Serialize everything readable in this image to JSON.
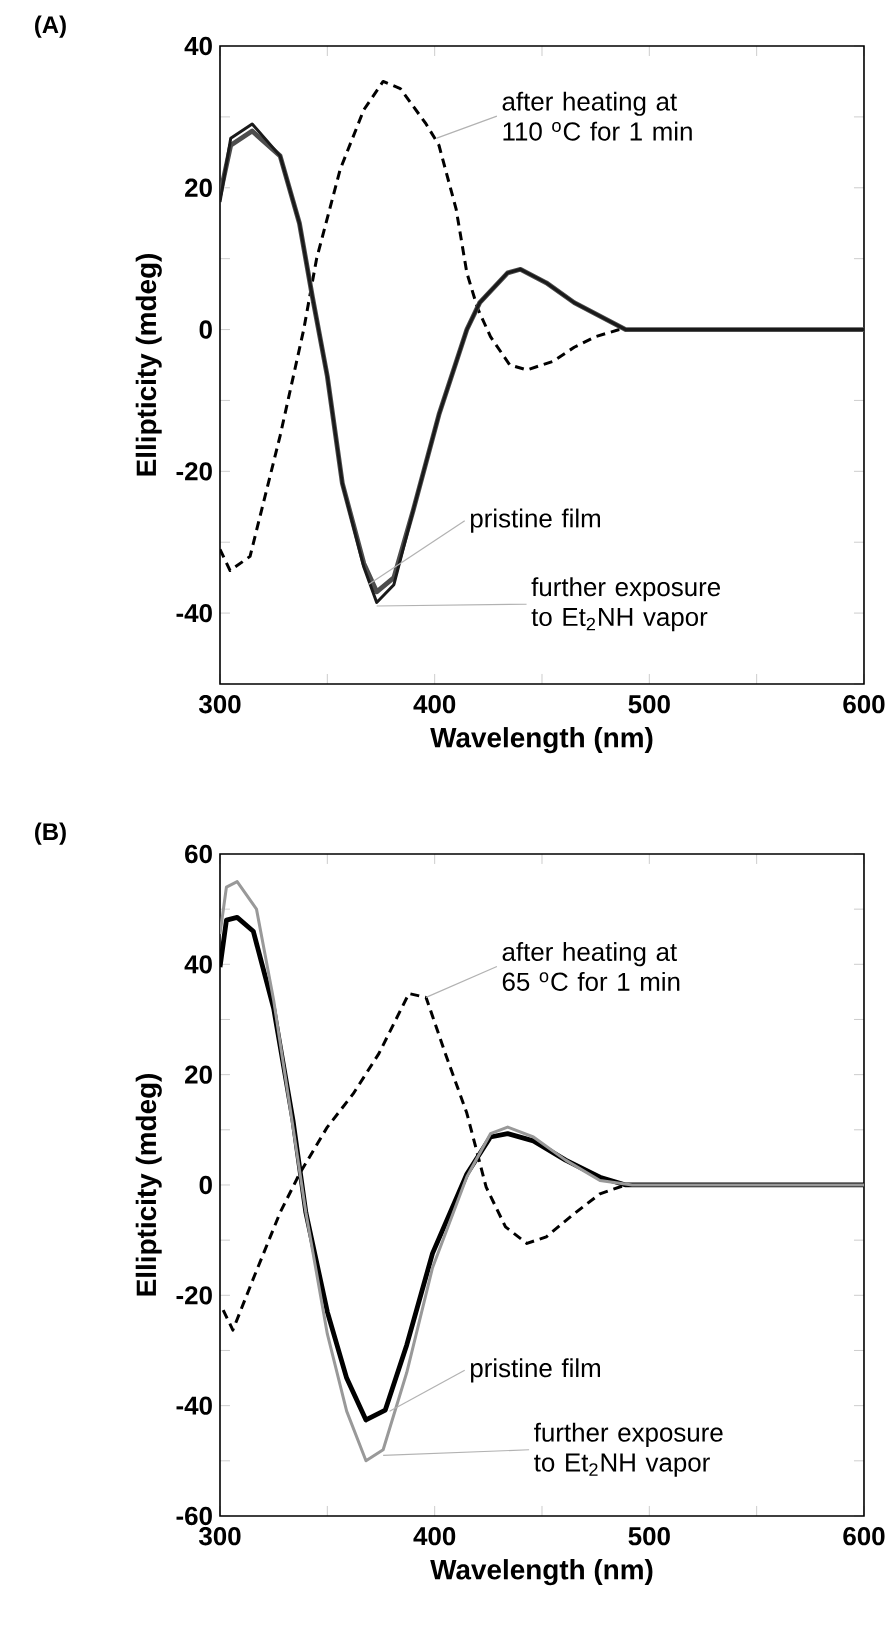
{
  "chart_data": [
    {
      "type": "line",
      "title": "(A)",
      "xlabel": "Wavelength (nm)",
      "ylabel": "Ellipticity (mdeg)",
      "xlim": [
        300,
        600
      ],
      "ylim": [
        -50,
        40
      ],
      "xticks": [
        300,
        {
          "value": 350,
          "label": null
        },
        400,
        {
          "value": 450,
          "label": null
        },
        500,
        {
          "value": 550,
          "label": null
        },
        600
      ],
      "yticks": [
        {
          "value": -50,
          "label": null
        },
        -40,
        {
          "value": -30,
          "label": null
        },
        -20,
        {
          "value": -10,
          "label": null
        },
        0,
        {
          "value": 10,
          "label": null
        },
        20,
        {
          "value": 30,
          "label": null
        },
        40
      ],
      "series": [
        {
          "color": "#000000",
          "line_style": "dashed",
          "x": [
            300,
            304.7,
            314,
            328,
            339,
            345,
            356,
            367,
            376,
            384,
            396,
            402,
            410,
            415,
            420,
            426,
            435,
            443,
            455,
            465,
            475,
            486,
            500,
            550,
            600
          ],
          "values": [
            -31,
            -34,
            -32,
            -15,
            0,
            10,
            22.6,
            31,
            35,
            34,
            29,
            26,
            17,
            8,
            3,
            -1,
            -5,
            -5.7,
            -4.5,
            -2.5,
            -1,
            0,
            0,
            0,
            0
          ]
        },
        {
          "color": "#4d4d4d",
          "line_style": "solid",
          "x": [
            300,
            305,
            315,
            328,
            337,
            343,
            350,
            357,
            367,
            373,
            381,
            390,
            402,
            415,
            421,
            434,
            440,
            452,
            465,
            477,
            489,
            520,
            560,
            600
          ],
          "values": [
            19,
            26,
            28,
            24.5,
            15,
            4.7,
            -6.6,
            -21.7,
            -33,
            -37,
            -35,
            -25.5,
            -12,
            0,
            3.8,
            8,
            8.5,
            6.6,
            3.8,
            1.9,
            0,
            0,
            0,
            0
          ]
        },
        {
          "color": "#1a1a1a",
          "line_style": "solid",
          "x": [
            300,
            305,
            315,
            328,
            337,
            343,
            350,
            357,
            367,
            373,
            381,
            390,
            402,
            415,
            421,
            434,
            440,
            452,
            465,
            477,
            489,
            520,
            560,
            600
          ],
          "values": [
            18,
            27,
            29,
            24.5,
            15,
            4.7,
            -6.6,
            -21.7,
            -33.5,
            -38.5,
            -36,
            -25.5,
            -12,
            0,
            3.8,
            8,
            8.5,
            6.6,
            3.8,
            1.9,
            0,
            0,
            0,
            0
          ]
        }
      ],
      "annotations": [
        {
          "text": "after heating at 110 $^{o}$C for 1 min",
          "x": 401,
          "y": 27
        },
        {
          "text": "pristine film",
          "x": 369,
          "y": -36
        },
        {
          "text": "further exposure to Et$_{2}$NH vapor",
          "x": 373,
          "y": -39
        }
      ]
    },
    {
      "type": "line",
      "title": "(B)",
      "xlabel": "Wavelength (nm)",
      "ylabel": "Ellipticity (mdeg)",
      "xlim": [
        300,
        600
      ],
      "ylim": [
        -60,
        60
      ],
      "xticks": [
        300,
        {
          "value": 350,
          "label": null
        },
        400,
        {
          "value": 450,
          "label": null
        },
        500,
        {
          "value": 550,
          "label": null
        },
        600
      ],
      "yticks": [
        -60,
        {
          "value": -50,
          "label": null
        },
        -40,
        {
          "value": -30,
          "label": null
        },
        -20,
        {
          "value": -10,
          "label": null
        },
        0,
        {
          "value": 10,
          "label": null
        },
        20,
        {
          "value": 30,
          "label": null
        },
        40,
        {
          "value": 50,
          "label": null
        },
        60
      ],
      "series": [
        {
          "color": "#000000",
          "line_style": "dashed",
          "x": [
            301.5,
            306,
            315.5,
            328,
            337,
            350,
            362,
            374,
            388,
            396,
            405,
            415,
            424,
            433,
            443,
            452,
            465,
            477,
            489,
            520,
            560,
            600
          ],
          "values": [
            -22.7,
            -26.3,
            -17,
            -5,
            2,
            10.5,
            16.5,
            23.8,
            34.7,
            34,
            23.8,
            13,
            -0.4,
            -7.6,
            -10.6,
            -9.4,
            -5.2,
            -1.6,
            0,
            0,
            0,
            0
          ]
        },
        {
          "color": "#000000",
          "line_style": "solid",
          "x": [
            300,
            303,
            308,
            315.5,
            325,
            334,
            340,
            350,
            359,
            368,
            377,
            387,
            399,
            415,
            426,
            434,
            446,
            461,
            477,
            489,
            520,
            560,
            600
          ],
          "values": [
            39.5,
            48,
            48.5,
            46,
            32,
            11.7,
            -5,
            -23,
            -35,
            -42.6,
            -40.8,
            -29,
            -12.4,
            2,
            8.7,
            9.3,
            8,
            4.5,
            1.4,
            0,
            0,
            0,
            0
          ]
        },
        {
          "color": "#999999",
          "line_style": "solid",
          "x": [
            300,
            303,
            308,
            317,
            325,
            334,
            340,
            350,
            359,
            368,
            376,
            387,
            399,
            415,
            426,
            434,
            446,
            461,
            477,
            492,
            520,
            560,
            600
          ],
          "values": [
            45.5,
            54,
            55,
            50,
            33.5,
            10.5,
            -5,
            -27,
            -41,
            -50,
            -48,
            -34,
            -15,
            1.5,
            9.3,
            10.5,
            8.7,
            4.5,
            0.8,
            0,
            0,
            0,
            0
          ]
        }
      ],
      "annotations": [
        {
          "text": "after heating at 65 $^{o}$C for 1 min",
          "x": 396,
          "y": 34
        },
        {
          "text": "pristine film",
          "x": 379,
          "y": -41
        },
        {
          "text": "further exposure to Et$_{2}$NH vapor",
          "x": 376,
          "y": -49
        }
      ]
    }
  ]
}
